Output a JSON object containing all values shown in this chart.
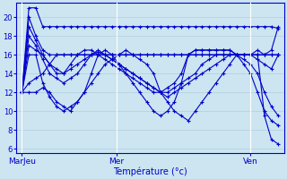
{
  "background_color": "#cce5f0",
  "plot_bg_color": "#cce5f0",
  "line_color": "#0000cc",
  "marker": "+",
  "marker_size": 3,
  "marker_lw": 0.8,
  "line_width": 0.8,
  "xlabel": "Température (°c)",
  "xlabel_fontsize": 7,
  "ytick_fontsize": 6,
  "xtick_fontsize": 6.5,
  "ylim": [
    5.5,
    21.5
  ],
  "yticks": [
    6,
    8,
    10,
    12,
    14,
    16,
    18,
    20
  ],
  "xlim": [
    0,
    192
  ],
  "x_tick_positions": [
    4,
    72,
    168
  ],
  "x_tick_labels": [
    "MarJeu",
    "Mer",
    "Ven"
  ],
  "grid_color": "#b0cfe0",
  "series": [
    [
      12.0,
      21.0,
      21.0,
      19.0,
      19.0,
      19.0,
      19.0,
      19.0,
      19.0,
      19.0,
      19.0,
      19.0,
      19.0,
      19.0,
      19.0,
      19.0,
      19.0,
      19.0,
      19.0,
      19.0,
      19.0,
      19.0,
      19.0,
      19.0,
      19.0,
      19.0,
      19.0,
      19.0,
      19.0,
      19.0,
      19.0,
      19.0,
      19.0,
      19.0,
      19.0,
      19.0,
      19.0,
      18.8
    ],
    [
      12.0,
      20.0,
      18.0,
      16.5,
      16.0,
      16.0,
      16.0,
      16.0,
      16.0,
      16.0,
      16.0,
      16.0,
      16.0,
      16.0,
      16.0,
      16.0,
      16.0,
      16.0,
      16.0,
      16.0,
      16.0,
      16.0,
      16.0,
      16.0,
      16.0,
      16.0,
      16.0,
      16.0,
      16.0,
      16.0,
      16.0,
      16.0,
      16.0,
      16.0,
      16.0,
      16.0,
      16.0,
      16.0
    ],
    [
      12.0,
      19.0,
      17.5,
      16.0,
      15.0,
      14.5,
      14.0,
      14.5,
      15.0,
      15.5,
      16.0,
      16.3,
      16.0,
      15.5,
      15.0,
      14.5,
      14.0,
      13.5,
      13.0,
      12.5,
      12.0,
      12.0,
      12.5,
      13.0,
      13.5,
      14.0,
      15.0,
      15.5,
      16.0,
      16.0,
      16.0,
      16.0,
      16.0,
      16.0,
      15.5,
      15.0,
      14.5,
      16.0
    ],
    [
      12.0,
      18.0,
      17.0,
      15.5,
      14.0,
      13.5,
      13.0,
      13.5,
      14.0,
      15.0,
      16.0,
      16.5,
      16.0,
      15.5,
      15.0,
      14.5,
      14.0,
      13.5,
      13.0,
      12.5,
      12.0,
      11.5,
      12.0,
      12.5,
      13.0,
      13.5,
      14.0,
      14.5,
      15.0,
      15.5,
      16.0,
      16.0,
      15.5,
      15.0,
      14.0,
      12.0,
      10.5,
      9.5
    ],
    [
      12.0,
      17.0,
      16.5,
      16.0,
      15.0,
      14.0,
      14.0,
      15.0,
      16.0,
      16.5,
      16.5,
      16.0,
      15.5,
      15.0,
      14.5,
      14.0,
      13.5,
      13.0,
      12.5,
      12.0,
      12.0,
      12.5,
      13.0,
      14.0,
      16.0,
      16.5,
      16.5,
      16.5,
      16.5,
      16.5,
      16.5,
      16.0,
      15.0,
      14.0,
      12.0,
      10.0,
      9.0,
      8.5
    ],
    [
      12.0,
      16.0,
      16.0,
      13.0,
      11.5,
      10.5,
      10.0,
      10.5,
      11.0,
      12.0,
      14.0,
      16.0,
      16.5,
      16.0,
      15.0,
      14.0,
      13.0,
      12.0,
      11.0,
      10.0,
      9.5,
      10.0,
      11.0,
      13.0,
      16.0,
      16.5,
      16.5,
      16.5,
      16.5,
      16.5,
      16.5,
      16.0,
      16.0,
      16.0,
      16.0,
      9.5,
      7.0,
      6.5
    ],
    [
      12.0,
      13.0,
      13.5,
      14.0,
      15.0,
      16.0,
      16.0,
      16.0,
      16.0,
      16.0,
      16.0,
      16.0,
      16.0,
      16.0,
      16.0,
      16.0,
      16.0,
      16.0,
      16.0,
      16.0,
      16.0,
      16.0,
      16.0,
      16.0,
      16.0,
      16.0,
      16.0,
      16.0,
      16.0,
      16.0,
      16.0,
      16.0,
      16.0,
      16.0,
      16.0,
      16.0,
      16.0,
      16.0
    ],
    [
      12.0,
      12.0,
      12.0,
      12.5,
      12.0,
      11.0,
      10.5,
      10.0,
      11.0,
      12.0,
      13.0,
      14.0,
      15.0,
      15.5,
      16.0,
      16.5,
      16.0,
      15.5,
      15.0,
      14.0,
      12.0,
      11.0,
      10.0,
      9.5,
      9.0,
      10.0,
      11.0,
      12.0,
      13.0,
      14.0,
      15.0,
      16.0,
      16.0,
      16.0,
      16.5,
      16.0,
      16.5,
      19.0
    ]
  ]
}
